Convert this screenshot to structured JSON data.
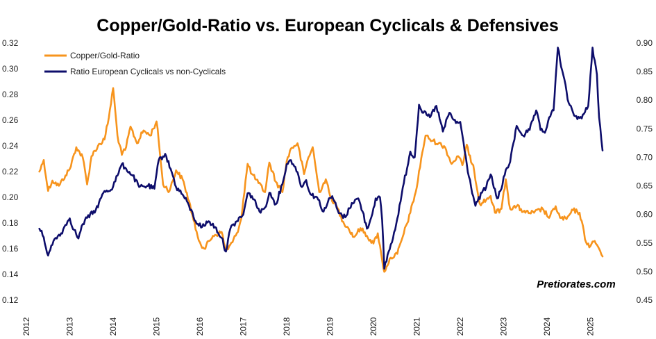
{
  "chart_data": {
    "type": "line",
    "title": "Copper/Gold-Ratio  vs. European Cyclicals & Defensives",
    "watermark": "Pretiorates.com",
    "x_ticks": [
      "2012",
      "2013",
      "2014",
      "2015",
      "2016",
      "2017",
      "2018",
      "2019",
      "2020",
      "2021",
      "2022",
      "2023",
      "2024",
      "2025"
    ],
    "x_range": [
      2012.0,
      2025.6
    ],
    "y_left": {
      "range": [
        0.12,
        0.32
      ],
      "ticks": [
        "0.12",
        "0.14",
        "0.16",
        "0.18",
        "0.20",
        "0.22",
        "0.24",
        "0.26",
        "0.28",
        "0.30",
        "0.32"
      ]
    },
    "y_right": {
      "range": [
        0.45,
        0.9
      ],
      "ticks": [
        "0.45",
        "0.50",
        "0.55",
        "0.60",
        "0.65",
        "0.70",
        "0.75",
        "0.80",
        "0.85",
        "0.90"
      ]
    },
    "legend_position": "top-left",
    "grid": false,
    "series": [
      {
        "name": "Copper/Gold-Ratio",
        "axis": "left",
        "color": "#F7941D",
        "x": [
          2012.3,
          2012.4,
          2012.5,
          2012.6,
          2012.75,
          2012.9,
          2013.0,
          2013.15,
          2013.3,
          2013.4,
          2013.5,
          2013.65,
          2013.8,
          2013.9,
          2014.0,
          2014.1,
          2014.2,
          2014.3,
          2014.4,
          2014.55,
          2014.7,
          2014.85,
          2015.0,
          2015.05,
          2015.15,
          2015.3,
          2015.45,
          2015.6,
          2015.75,
          2015.9,
          2016.0,
          2016.1,
          2016.3,
          2016.5,
          2016.6,
          2016.75,
          2016.85,
          2016.95,
          2017.0,
          2017.1,
          2017.2,
          2017.35,
          2017.5,
          2017.6,
          2017.75,
          2017.9,
          2018.0,
          2018.1,
          2018.25,
          2018.4,
          2018.5,
          2018.6,
          2018.75,
          2018.9,
          2019.0,
          2019.15,
          2019.3,
          2019.4,
          2019.55,
          2019.7,
          2019.85,
          2020.0,
          2020.1,
          2020.2,
          2020.25,
          2020.3,
          2020.4,
          2020.55,
          2020.7,
          2020.85,
          2021.0,
          2021.1,
          2021.2,
          2021.35,
          2021.5,
          2021.65,
          2021.8,
          2021.95,
          2022.05,
          2022.15,
          2022.2,
          2022.3,
          2022.45,
          2022.6,
          2022.7,
          2022.8,
          2022.95,
          2023.05,
          2023.15,
          2023.3,
          2023.5,
          2023.7,
          2023.9,
          2024.05,
          2024.2,
          2024.3,
          2024.45,
          2024.6,
          2024.75,
          2024.9,
          2025.0,
          2025.1,
          2025.2,
          2025.28
        ],
        "values": [
          0.22,
          0.229,
          0.205,
          0.213,
          0.209,
          0.217,
          0.222,
          0.239,
          0.231,
          0.21,
          0.232,
          0.24,
          0.245,
          0.262,
          0.285,
          0.248,
          0.233,
          0.239,
          0.255,
          0.242,
          0.252,
          0.248,
          0.259,
          0.244,
          0.21,
          0.205,
          0.221,
          0.214,
          0.197,
          0.175,
          0.165,
          0.16,
          0.17,
          0.173,
          0.158,
          0.165,
          0.172,
          0.183,
          0.198,
          0.226,
          0.218,
          0.211,
          0.204,
          0.227,
          0.212,
          0.204,
          0.228,
          0.238,
          0.242,
          0.218,
          0.231,
          0.239,
          0.204,
          0.214,
          0.201,
          0.193,
          0.181,
          0.177,
          0.169,
          0.176,
          0.17,
          0.164,
          0.172,
          0.151,
          0.142,
          0.146,
          0.153,
          0.156,
          0.172,
          0.188,
          0.208,
          0.23,
          0.248,
          0.244,
          0.242,
          0.239,
          0.226,
          0.232,
          0.225,
          0.241,
          0.233,
          0.225,
          0.195,
          0.198,
          0.201,
          0.188,
          0.191,
          0.214,
          0.191,
          0.193,
          0.188,
          0.188,
          0.191,
          0.184,
          0.193,
          0.184,
          0.183,
          0.19,
          0.188,
          0.165,
          0.162,
          0.166,
          0.16,
          0.154
        ]
      },
      {
        "name": "Ratio European Cyclicals vs non-Cyclicals",
        "axis": "right",
        "color": "#0D0D6B",
        "x": [
          2012.3,
          2012.4,
          2012.5,
          2012.65,
          2012.8,
          2012.95,
          2013.0,
          2013.1,
          2013.2,
          2013.3,
          2013.4,
          2013.6,
          2013.8,
          2013.95,
          2014.1,
          2014.2,
          2014.3,
          2014.45,
          2014.6,
          2014.8,
          2014.95,
          2015.05,
          2015.2,
          2015.35,
          2015.45,
          2015.6,
          2015.75,
          2015.9,
          2016.05,
          2016.2,
          2016.35,
          2016.5,
          2016.6,
          2016.7,
          2016.85,
          2017.0,
          2017.1,
          2017.2,
          2017.4,
          2017.5,
          2017.6,
          2017.75,
          2017.9,
          2018.0,
          2018.1,
          2018.2,
          2018.35,
          2018.45,
          2018.55,
          2018.7,
          2018.85,
          2018.95,
          2019.05,
          2019.2,
          2019.35,
          2019.5,
          2019.65,
          2019.75,
          2019.85,
          2019.95,
          2020.05,
          2020.15,
          2020.2,
          2020.25,
          2020.35,
          2020.45,
          2020.55,
          2020.7,
          2020.85,
          2020.95,
          2021.05,
          2021.15,
          2021.3,
          2021.45,
          2021.6,
          2021.75,
          2021.9,
          2022.0,
          2022.1,
          2022.2,
          2022.35,
          2022.5,
          2022.6,
          2022.7,
          2022.85,
          2022.95,
          2023.05,
          2023.15,
          2023.3,
          2023.45,
          2023.6,
          2023.75,
          2023.85,
          2023.95,
          2024.05,
          2024.15,
          2024.25,
          2024.35,
          2024.5,
          2024.65,
          2024.8,
          2024.95,
          2025.05,
          2025.15,
          2025.2,
          2025.28
        ],
        "values": [
          0.575,
          0.56,
          0.528,
          0.557,
          0.567,
          0.588,
          0.593,
          0.573,
          0.558,
          0.583,
          0.594,
          0.608,
          0.641,
          0.643,
          0.668,
          0.688,
          0.68,
          0.668,
          0.648,
          0.65,
          0.645,
          0.695,
          0.706,
          0.674,
          0.648,
          0.635,
          0.615,
          0.588,
          0.578,
          0.588,
          0.578,
          0.559,
          0.535,
          0.575,
          0.588,
          0.6,
          0.637,
          0.632,
          0.603,
          0.612,
          0.638,
          0.618,
          0.653,
          0.688,
          0.695,
          0.683,
          0.648,
          0.66,
          0.635,
          0.63,
          0.605,
          0.622,
          0.632,
          0.602,
          0.595,
          0.62,
          0.628,
          0.605,
          0.575,
          0.595,
          0.628,
          0.63,
          0.59,
          0.505,
          0.535,
          0.558,
          0.593,
          0.655,
          0.71,
          0.7,
          0.792,
          0.778,
          0.77,
          0.79,
          0.745,
          0.778,
          0.76,
          0.762,
          0.712,
          0.666,
          0.615,
          0.638,
          0.648,
          0.67,
          0.628,
          0.645,
          0.678,
          0.692,
          0.755,
          0.738,
          0.748,
          0.782,
          0.748,
          0.743,
          0.77,
          0.782,
          0.892,
          0.852,
          0.795,
          0.772,
          0.768,
          0.79,
          0.892,
          0.845,
          0.77,
          0.712
        ]
      }
    ]
  }
}
